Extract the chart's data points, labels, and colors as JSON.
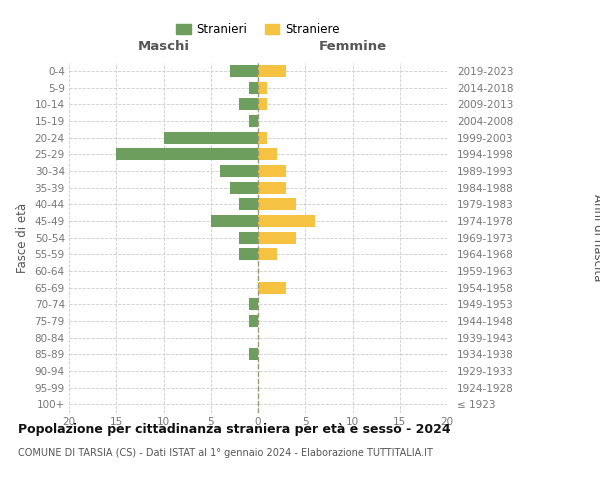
{
  "age_groups": [
    "100+",
    "95-99",
    "90-94",
    "85-89",
    "80-84",
    "75-79",
    "70-74",
    "65-69",
    "60-64",
    "55-59",
    "50-54",
    "45-49",
    "40-44",
    "35-39",
    "30-34",
    "25-29",
    "20-24",
    "15-19",
    "10-14",
    "5-9",
    "0-4"
  ],
  "birth_years": [
    "≤ 1923",
    "1924-1928",
    "1929-1933",
    "1934-1938",
    "1939-1943",
    "1944-1948",
    "1949-1953",
    "1954-1958",
    "1959-1963",
    "1964-1968",
    "1969-1973",
    "1974-1978",
    "1979-1983",
    "1984-1988",
    "1989-1993",
    "1994-1998",
    "1999-2003",
    "2004-2008",
    "2009-2013",
    "2014-2018",
    "2019-2023"
  ],
  "males": [
    0,
    0,
    0,
    1,
    0,
    1,
    1,
    0,
    0,
    2,
    2,
    5,
    2,
    3,
    4,
    15,
    10,
    1,
    2,
    1,
    3
  ],
  "females": [
    0,
    0,
    0,
    0,
    0,
    0,
    0,
    3,
    0,
    2,
    4,
    6,
    4,
    3,
    3,
    2,
    1,
    0,
    1,
    1,
    3
  ],
  "male_color": "#6d9e5e",
  "female_color": "#f5c242",
  "background_color": "#ffffff",
  "grid_color": "#cccccc",
  "title": "Popolazione per cittadinanza straniera per età e sesso - 2024",
  "subtitle": "COMUNE DI TARSIA (CS) - Dati ISTAT al 1° gennaio 2024 - Elaborazione TUTTITALIA.IT",
  "xlabel_left": "Maschi",
  "xlabel_right": "Femmine",
  "ylabel_left": "Fasce di età",
  "ylabel_right": "Anni di nascita",
  "legend_male": "Stranieri",
  "legend_female": "Straniere",
  "xlim": 20
}
